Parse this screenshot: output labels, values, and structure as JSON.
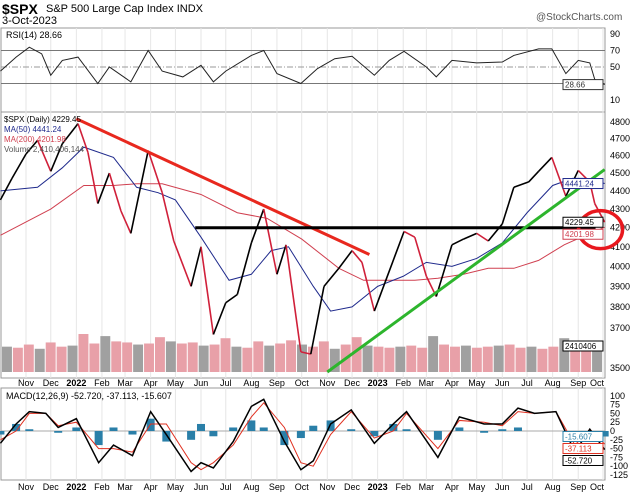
{
  "header": {
    "symbol": "$SPX",
    "name": "S&P 500 Large Cap Index",
    "exchange": "INDX",
    "date": "3-Oct-2023",
    "source": "@StockCharts.com"
  },
  "chart_data": [
    {
      "type": "line",
      "title": "RSI(14) 28.66",
      "ylim": [
        0,
        100
      ],
      "ticks": [
        90,
        70,
        50,
        10
      ],
      "last_label": "28.66",
      "grid": true,
      "x": [
        "2021-10-01",
        "2021-10-20",
        "2021-11-05",
        "2021-11-20",
        "2021-12-01",
        "2021-12-15",
        "2022-01-03",
        "2022-01-27",
        "2022-02-10",
        "2022-03-08",
        "2022-03-29",
        "2022-04-15",
        "2022-05-10",
        "2022-06-01",
        "2022-06-16",
        "2022-07-01",
        "2022-08-01",
        "2022-08-16",
        "2022-09-01",
        "2022-09-30",
        "2022-10-20",
        "2022-11-10",
        "2022-12-01",
        "2022-12-28",
        "2023-01-15",
        "2023-02-02",
        "2023-03-01",
        "2023-03-13",
        "2023-04-01",
        "2023-05-01",
        "2023-06-01",
        "2023-06-15",
        "2023-07-15",
        "2023-07-31",
        "2023-08-17",
        "2023-09-01",
        "2023-09-15",
        "2023-09-21",
        "2023-10-03"
      ],
      "values": [
        45,
        62,
        74,
        66,
        40,
        58,
        62,
        30,
        50,
        32,
        70,
        45,
        38,
        52,
        32,
        45,
        64,
        70,
        42,
        30,
        48,
        60,
        63,
        40,
        58,
        69,
        50,
        38,
        58,
        55,
        56,
        64,
        72,
        72,
        42,
        58,
        55,
        35,
        28.66
      ]
    },
    {
      "type": "line",
      "title": "$SPX (Daily) 4229.45",
      "scale": "log",
      "ylim": [
        3500,
        4800
      ],
      "ticks": [
        4800,
        4700,
        4600,
        4500,
        4400,
        4300,
        4200,
        4100,
        4000,
        3900,
        3800,
        3700,
        3500
      ],
      "legend": [
        "$SPX (Daily) 4229.45",
        "MA(50) 4441.24",
        "MA(200) 4201.98",
        "Volume 2,410,406,144"
      ],
      "axis_labels": {
        "close": "4229.45",
        "ma50": "4441.24",
        "ma200": "4201.98",
        "volume": "2410406"
      },
      "months": [
        "Nov",
        "Dec",
        "2022",
        "Feb",
        "Mar",
        "Apr",
        "May",
        "Jun",
        "Jul",
        "Aug",
        "Sep",
        "Oct",
        "Nov",
        "Dec",
        "2023",
        "Feb",
        "Mar",
        "Apr",
        "May",
        "Jun",
        "Jul",
        "Aug",
        "Sep",
        "Oct"
      ],
      "price": {
        "x": [
          "2021-10-01",
          "2021-10-15",
          "2021-11-01",
          "2021-11-15",
          "2021-12-01",
          "2021-12-15",
          "2022-01-03",
          "2022-01-15",
          "2022-01-27",
          "2022-02-10",
          "2022-02-24",
          "2022-03-08",
          "2022-03-29",
          "2022-04-15",
          "2022-04-29",
          "2022-05-20",
          "2022-06-01",
          "2022-06-16",
          "2022-07-01",
          "2022-07-15",
          "2022-08-01",
          "2022-08-16",
          "2022-09-01",
          "2022-09-12",
          "2022-09-30",
          "2022-10-12",
          "2022-10-28",
          "2022-11-15",
          "2022-12-01",
          "2022-12-13",
          "2022-12-28",
          "2023-01-10",
          "2023-02-02",
          "2023-02-15",
          "2023-03-01",
          "2023-03-13",
          "2023-04-01",
          "2023-04-15",
          "2023-05-01",
          "2023-05-15",
          "2023-06-01",
          "2023-06-15",
          "2023-07-03",
          "2023-07-15",
          "2023-07-31",
          "2023-08-17",
          "2023-09-01",
          "2023-09-15",
          "2023-09-21",
          "2023-10-03"
        ],
        "values": [
          4350,
          4470,
          4610,
          4690,
          4510,
          4670,
          4790,
          4620,
          4330,
          4500,
          4290,
          4170,
          4630,
          4390,
          4130,
          3900,
          4100,
          3670,
          3820,
          3860,
          4120,
          4300,
          3960,
          4110,
          3590,
          3580,
          3900,
          3990,
          4080,
          4020,
          3780,
          3920,
          4180,
          4150,
          3950,
          3850,
          4110,
          4140,
          4170,
          4130,
          4220,
          4420,
          4450,
          4510,
          4590,
          4370,
          4515,
          4450,
          4330,
          4229.45
        ]
      },
      "ma50": {
        "x": [
          "2021-10-01",
          "2021-11-15",
          "2021-12-15",
          "2022-01-10",
          "2022-02-15",
          "2022-03-15",
          "2022-04-10",
          "2022-05-01",
          "2022-06-01",
          "2022-07-05",
          "2022-08-01",
          "2022-08-25",
          "2022-09-15",
          "2022-10-15",
          "2022-11-05",
          "2022-12-01",
          "2023-01-01",
          "2023-02-01",
          "2023-03-01",
          "2023-04-01",
          "2023-05-01",
          "2023-06-01",
          "2023-07-01",
          "2023-08-01",
          "2023-08-25",
          "2023-09-10",
          "2023-10-03"
        ],
        "values": [
          4400,
          4420,
          4530,
          4650,
          4590,
          4420,
          4390,
          4350,
          4150,
          3930,
          3960,
          4080,
          4100,
          3900,
          3780,
          3800,
          3900,
          3950,
          4020,
          4000,
          4040,
          4120,
          4280,
          4430,
          4470,
          4470,
          4441.24
        ]
      },
      "ma200": {
        "x": [
          "2021-10-01",
          "2021-12-01",
          "2022-01-10",
          "2022-02-15",
          "2022-03-15",
          "2022-04-15",
          "2022-06-01",
          "2022-07-15",
          "2022-08-20",
          "2022-10-01",
          "2022-11-15",
          "2022-12-15",
          "2023-01-15",
          "2023-02-15",
          "2023-03-15",
          "2023-04-15",
          "2023-05-15",
          "2023-06-15",
          "2023-07-15",
          "2023-08-15",
          "2023-09-15",
          "2023-10-03"
        ],
        "values": [
          4160,
          4300,
          4430,
          4430,
          4440,
          4440,
          4380,
          4280,
          4250,
          4140,
          3990,
          3930,
          3930,
          3930,
          3940,
          3960,
          3990,
          3990,
          4030,
          4110,
          4170,
          4201.98
        ]
      },
      "volume_billions": [
        2.4,
        2.3,
        2.6,
        2.2,
        2.8,
        2.4,
        2.5,
        3.6,
        2.7,
        3.4,
        2.9,
        2.8,
        2.6,
        2.7,
        3.3,
        2.9,
        2.7,
        2.8,
        2.5,
        2.6,
        3.2,
        2.4,
        2.3,
        2.9,
        2.5,
        2.7,
        3.0,
        2.6,
        2.4,
        2.9,
        2.2,
        2.6,
        3.3,
        2.5,
        2.4,
        2.3,
        2.4,
        2.5,
        2.3,
        3.4,
        2.6,
        2.4,
        2.5,
        2.3,
        2.4,
        2.5,
        2.6,
        2.3,
        2.4,
        2.2,
        2.4,
        3.2,
        2.3,
        2.4,
        2.41
      ],
      "trendlines": [
        {
          "color": "#e8281e",
          "from": [
            "2022-01-01",
            4820
          ],
          "to": [
            "2022-12-22",
            4060
          ]
        },
        {
          "color": "#000000",
          "from": [
            "2022-05-25",
            4200
          ],
          "to": [
            "2023-09-22",
            4200
          ]
        },
        {
          "color": "#2db52d",
          "from": [
            "2022-11-01",
            3500
          ],
          "to": [
            "2023-10-03",
            4520
          ]
        }
      ],
      "highlight": {
        "color": "#e8181e",
        "at": [
          "2023-09-28",
          4190
        ]
      }
    },
    {
      "type": "line",
      "title": "MACD(12,26,9) -52.720, -37.113, -15.607",
      "ylim": [
        -125,
        100
      ],
      "ticks": [
        100,
        75,
        50,
        25,
        0,
        -25,
        -50,
        -75,
        -100,
        -125
      ],
      "last_labels": {
        "macd": "-52.720",
        "signal": "-37.113",
        "histogram": "-15.607"
      },
      "x": [
        "2021-10-01",
        "2021-10-20",
        "2021-11-05",
        "2021-11-25",
        "2021-12-10",
        "2022-01-01",
        "2022-01-28",
        "2022-02-15",
        "2022-03-10",
        "2022-04-01",
        "2022-04-20",
        "2022-05-20",
        "2022-06-01",
        "2022-06-16",
        "2022-07-10",
        "2022-08-01",
        "2022-08-16",
        "2022-09-10",
        "2022-09-30",
        "2022-10-15",
        "2022-11-05",
        "2022-11-30",
        "2022-12-28",
        "2023-01-20",
        "2023-02-05",
        "2023-03-15",
        "2023-04-10",
        "2023-05-10",
        "2023-06-01",
        "2023-06-20",
        "2023-07-10",
        "2023-08-05",
        "2023-08-28",
        "2023-09-15",
        "2023-10-03"
      ],
      "macd": [
        -35,
        20,
        55,
        50,
        10,
        35,
        -90,
        -40,
        -70,
        55,
        -10,
        -115,
        -90,
        -105,
        -30,
        70,
        90,
        -30,
        -110,
        -85,
        20,
        60,
        -35,
        20,
        55,
        -75,
        40,
        20,
        20,
        65,
        50,
        55,
        -60,
        5,
        -52.72
      ],
      "signal": [
        -25,
        0,
        50,
        50,
        15,
        25,
        -50,
        -50,
        -60,
        20,
        20,
        -90,
        -110,
        -90,
        -40,
        40,
        80,
        10,
        -90,
        -100,
        -10,
        55,
        -20,
        0,
        50,
        -50,
        30,
        25,
        15,
        55,
        50,
        55,
        -40,
        5,
        -37.11
      ],
      "histogram": [
        -10,
        20,
        5,
        0,
        -5,
        10,
        -40,
        10,
        -10,
        35,
        -30,
        -25,
        20,
        -15,
        10,
        30,
        10,
        -40,
        -20,
        15,
        30,
        5,
        -15,
        20,
        5,
        -25,
        10,
        -5,
        5,
        10,
        0,
        0,
        -20,
        0,
        -15.61
      ]
    }
  ],
  "colors": {
    "price_up": "#000000",
    "price_down": "#d0203a",
    "ma50": "#1f2a8c",
    "ma200": "#d04050",
    "volume_up": "#a0a0a0",
    "volume_down": "#e8a0a8",
    "macd": "#000000",
    "signal": "#e03020",
    "histogram": "#2a7fa8"
  }
}
